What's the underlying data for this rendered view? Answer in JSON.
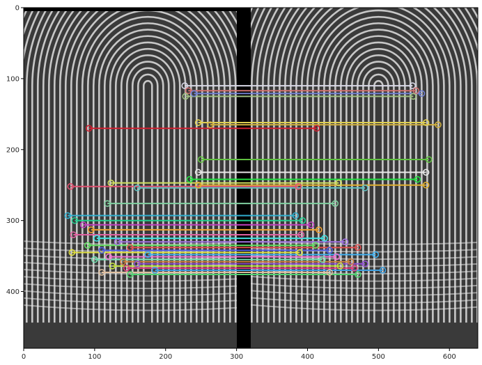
{
  "chart_data": {
    "type": "image",
    "title": "",
    "xlabel": "",
    "ylabel": "",
    "xlim": [
      0,
      640
    ],
    "ylim": [
      480,
      0
    ],
    "grid": false,
    "x_ticks": [
      0,
      100,
      200,
      300,
      400,
      500,
      600
    ],
    "y_ticks": [
      0,
      100,
      200,
      300,
      400
    ],
    "image_regions": {
      "left_fingerprint": [
        0,
        300
      ],
      "separator": [
        300,
        320
      ],
      "right_fingerprint": [
        320,
        640
      ]
    },
    "colors": {
      "image_background": "#3a3a3a",
      "separator": "#000000",
      "ridge": "#e6e6e6"
    },
    "matches": [
      [
        227,
        110,
        548,
        110,
        "#d8d8e6"
      ],
      [
        232,
        117,
        553,
        117,
        "#d07070"
      ],
      [
        240,
        121,
        561,
        121,
        "#7080d0"
      ],
      [
        228,
        125,
        549,
        125,
        "#a0c080"
      ],
      [
        246,
        162,
        567,
        162,
        "#e0d050"
      ],
      [
        263,
        165,
        584,
        165,
        "#d0b040"
      ],
      [
        92,
        170,
        413,
        170,
        "#d02030"
      ],
      [
        250,
        214,
        571,
        214,
        "#60c040"
      ],
      [
        246,
        232,
        567,
        232,
        "#e8e8e8"
      ],
      [
        234,
        242,
        555,
        242,
        "#20e040"
      ],
      [
        123,
        247,
        444,
        247,
        "#d0e060"
      ],
      [
        246,
        250,
        567,
        250,
        "#e0b030"
      ],
      [
        66,
        252,
        387,
        252,
        "#e05070"
      ],
      [
        160,
        254,
        481,
        254,
        "#60c0c0"
      ],
      [
        118,
        276,
        439,
        276,
        "#80d0a0"
      ],
      [
        62,
        293,
        383,
        293,
        "#30b0d0"
      ],
      [
        72,
        300,
        393,
        300,
        "#20d090"
      ],
      [
        84,
        306,
        405,
        306,
        "#c040c0"
      ],
      [
        95,
        313,
        416,
        313,
        "#f0a030"
      ],
      [
        70,
        320,
        391,
        320,
        "#e060a0"
      ],
      [
        103,
        325,
        424,
        325,
        "#40e0e0"
      ],
      [
        132,
        330,
        453,
        330,
        "#a070e0"
      ],
      [
        90,
        335,
        411,
        335,
        "#60e060"
      ],
      [
        150,
        338,
        471,
        338,
        "#e05050"
      ],
      [
        110,
        342,
        431,
        342,
        "#5060e0"
      ],
      [
        68,
        345,
        389,
        345,
        "#e0e040"
      ],
      [
        175,
        348,
        496,
        348,
        "#40b0f0"
      ],
      [
        120,
        351,
        441,
        351,
        "#f070d0"
      ],
      [
        100,
        355,
        421,
        355,
        "#70e0b0"
      ],
      [
        140,
        358,
        461,
        358,
        "#d08040"
      ],
      [
        160,
        361,
        481,
        361,
        "#9050d0"
      ],
      [
        125,
        364,
        446,
        364,
        "#c0e040"
      ],
      [
        145,
        367,
        466,
        367,
        "#e04080"
      ],
      [
        185,
        370,
        506,
        370,
        "#40a0e0"
      ],
      [
        110,
        373,
        431,
        373,
        "#e0c0a0"
      ],
      [
        150,
        376,
        471,
        376,
        "#50d070"
      ]
    ]
  }
}
